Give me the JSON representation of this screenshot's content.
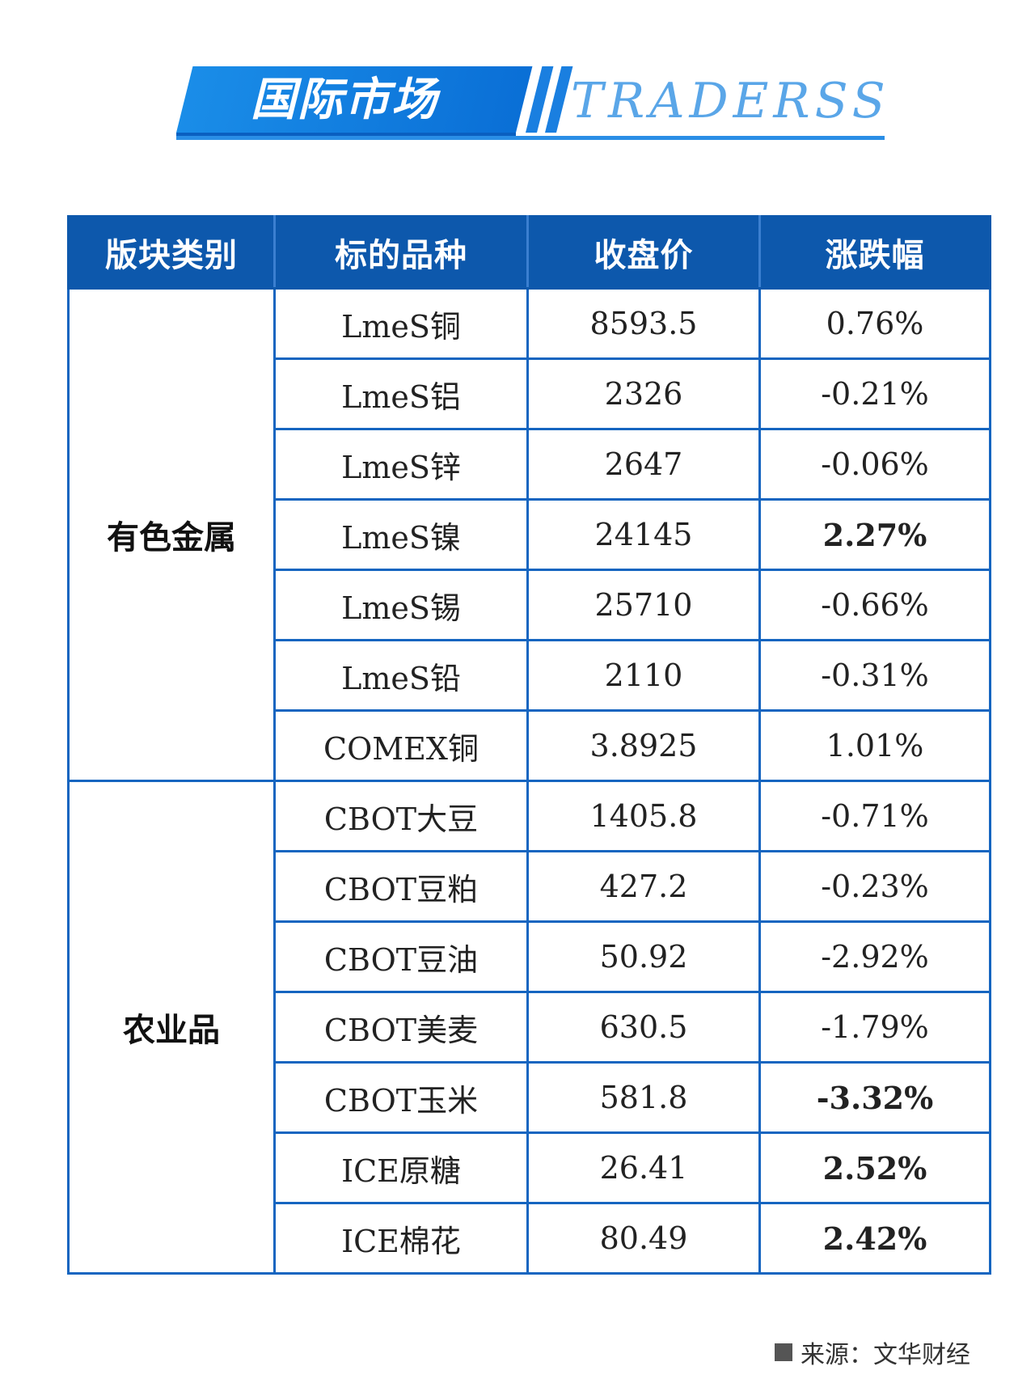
{
  "banner": {
    "title": "国际市场",
    "brand": "TRADERSS"
  },
  "table": {
    "headers": [
      "版块类别",
      "标的品种",
      "收盘价",
      "涨跌幅"
    ],
    "groups": [
      {
        "category": "有色金属",
        "rows": [
          {
            "name": "LmeS铜",
            "close": "8593.5",
            "change": "0.76%",
            "direction": "up",
            "emphasis": false
          },
          {
            "name": "LmeS铝",
            "close": "2326",
            "change": "-0.21%",
            "direction": "down",
            "emphasis": false
          },
          {
            "name": "LmeS锌",
            "close": "2647",
            "change": "-0.06%",
            "direction": "down",
            "emphasis": false
          },
          {
            "name": "LmeS镍",
            "close": "24145",
            "change": "2.27%",
            "direction": "up",
            "emphasis": true
          },
          {
            "name": "LmeS锡",
            "close": "25710",
            "change": "-0.66%",
            "direction": "down",
            "emphasis": false
          },
          {
            "name": "LmeS铅",
            "close": "2110",
            "change": "-0.31%",
            "direction": "down",
            "emphasis": false
          },
          {
            "name": "COMEX铜",
            "close": "3.8925",
            "change": "1.01%",
            "direction": "up",
            "emphasis": false
          }
        ]
      },
      {
        "category": "农业品",
        "rows": [
          {
            "name": "CBOT大豆",
            "close": "1405.8",
            "change": "-0.71%",
            "direction": "down",
            "emphasis": false
          },
          {
            "name": "CBOT豆粕",
            "close": "427.2",
            "change": "-0.23%",
            "direction": "down",
            "emphasis": false
          },
          {
            "name": "CBOT豆油",
            "close": "50.92",
            "change": "-2.92%",
            "direction": "down",
            "emphasis": false
          },
          {
            "name": "CBOT美麦",
            "close": "630.5",
            "change": "-1.79%",
            "direction": "down",
            "emphasis": false
          },
          {
            "name": "CBOT玉米",
            "close": "581.8",
            "change": "-3.32%",
            "direction": "down",
            "emphasis": true
          },
          {
            "name": "ICE原糖",
            "close": "26.41",
            "change": "2.52%",
            "direction": "up",
            "emphasis": true
          },
          {
            "name": "ICE棉花",
            "close": "80.49",
            "change": "2.42%",
            "direction": "up",
            "emphasis": true
          }
        ]
      }
    ]
  },
  "colors": {
    "header_bg": "#0d58ac",
    "border": "#1565c0",
    "up": "#e61d1d",
    "down": "#20a64a"
  },
  "footer": {
    "source": "来源：文华财经",
    "source_icon": "square-bullet-icon"
  }
}
